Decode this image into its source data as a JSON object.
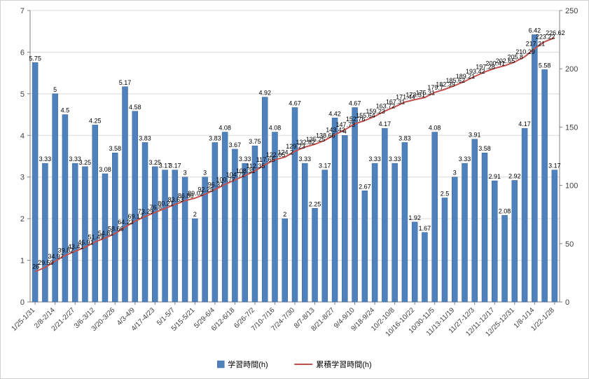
{
  "chart_data": {
    "type": "combo_bar_line",
    "title": "",
    "x_tick_labels": [
      "1/25-1/31",
      "2/8-2/14",
      "2/21-2/27",
      "3/6-3/12",
      "3/20-3/26",
      "4/3-4/9",
      "4/17-4/23",
      "5/1-5/7",
      "5/15-5/21",
      "5/29-6/4",
      "6/12-6/18",
      "6/26-7/2",
      "7/10-7/16",
      "7/24-7/30",
      "8/7-8/13",
      "8/21-8/27",
      "9/4-9/10",
      "9/18-9/24",
      "10/2-10/8",
      "10/16-10/22",
      "10/30-11/5",
      "11/13-11/19",
      "11/27-12/3",
      "12/11-12/17",
      "12/25-12/31",
      "1/8-1/14",
      "1/22-1/28"
    ],
    "x_tick_every": 2,
    "bar_series": {
      "name": "学習時間(h)",
      "color": "#4F81BD",
      "values": [
        5.75,
        3.33,
        5,
        4.5,
        3.33,
        3.25,
        4.25,
        3.08,
        3.58,
        5.17,
        4.58,
        3.83,
        3.25,
        3.17,
        3.17,
        3,
        2,
        3,
        3.83,
        4.08,
        3.67,
        3.33,
        3.75,
        4.92,
        4.08,
        2,
        4.67,
        3.33,
        2.25,
        3.17,
        4.42,
        4,
        4.67,
        2.67,
        3.33,
        4.17,
        3.33,
        3.83,
        1.92,
        1.67,
        4.08,
        2.5,
        3,
        3.33,
        3.91,
        3.58,
        2.91,
        2.08,
        2.92,
        4.17,
        6.42,
        5.58,
        3.17
      ]
    },
    "line_series": {
      "name": "累積学習時間(h)",
      "color": "#C0504D",
      "values": [
        26,
        29.59,
        34.97,
        39.82,
        43.41,
        46.91,
        51.49,
        54.81,
        58.66,
        64.23,
        69.17,
        73.29,
        76.8,
        80.21,
        83.63,
        86.86,
        89.02,
        92.25,
        96.37,
        100.77,
        104.72,
        108.31,
        112.35,
        117.65,
        122.05,
        124.2,
        129.23,
        132.82,
        135.25,
        138.66,
        143.42,
        147.73,
        152.76,
        155.64,
        159.23,
        163.72,
        167.31,
        171.44,
        173.51,
        175.31,
        179.7,
        182.39,
        185.62,
        189.21,
        193.42,
        197.28,
        200.41,
        202.65,
        205.8,
        210.29,
        217.21,
        223.22,
        226.62
      ]
    },
    "y_left": {
      "min": 0,
      "max": 7,
      "step": 1
    },
    "y_right": {
      "min": 0,
      "max": 250,
      "step": 50
    },
    "grid": true,
    "legend_position": "bottom",
    "colors": {
      "gridline": "#D9D9D9",
      "axis": "#808080",
      "tick_text": "#3f3f3f",
      "data_label": "#000000",
      "background": "#FFFFFF"
    }
  }
}
